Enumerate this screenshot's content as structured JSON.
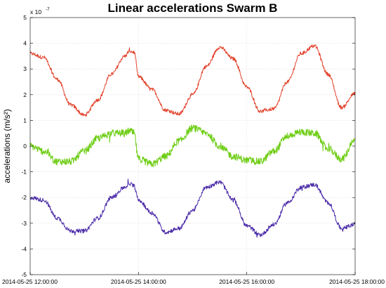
{
  "chart_data": {
    "type": "line",
    "title": "Linear accelerations Swarm B",
    "ylabel": "accelerations (m/s²)",
    "xlabel": "",
    "y_scale_factor_base": "x 10",
    "y_scale_factor_exponent": "-7",
    "ylim": [
      -5,
      5
    ],
    "yticks": [
      5,
      4,
      3,
      2,
      1,
      0,
      -1,
      -2,
      -3,
      -4,
      -5
    ],
    "ytick_labels": [
      "5",
      "4",
      "3",
      "2",
      "1",
      "0",
      "-1",
      "-2",
      "-3",
      "-4",
      "-5"
    ],
    "xlim": [
      "2014-05-25 12:00:00",
      "2014-05-25 18:00:00"
    ],
    "xtick_labels": [
      "2014-05-25 12:00:00",
      "2014-05-25 14:00:00",
      "2014-05-25 16:00:00",
      "2014-05-25 18:00:00"
    ],
    "grid": true,
    "series": [
      {
        "color": "#e2412a",
        "x": [
          "12:00",
          "12:15",
          "12:30",
          "12:45",
          "13:00",
          "13:15",
          "13:30",
          "13:45",
          "13:50",
          "13:55",
          "14:00",
          "14:15",
          "14:30",
          "14:45",
          "15:00",
          "15:15",
          "15:30",
          "15:45",
          "16:00",
          "16:15",
          "16:30",
          "16:45",
          "17:00",
          "17:15",
          "17:30",
          "17:45",
          "18:00"
        ],
        "values": [
          3.6,
          3.45,
          2.6,
          1.6,
          1.2,
          1.8,
          2.8,
          3.5,
          3.7,
          3.65,
          2.7,
          2.2,
          1.4,
          1.25,
          2.0,
          3.1,
          3.85,
          3.4,
          2.3,
          1.35,
          1.45,
          2.5,
          3.6,
          3.9,
          2.8,
          1.5,
          2.05
        ]
      },
      {
        "color": "#6ccd12",
        "x": [
          "12:00",
          "12:15",
          "12:30",
          "12:45",
          "13:00",
          "13:15",
          "13:30",
          "13:45",
          "13:50",
          "13:55",
          "14:00",
          "14:15",
          "14:30",
          "14:45",
          "15:00",
          "15:15",
          "15:30",
          "15:45",
          "16:00",
          "16:15",
          "16:30",
          "16:45",
          "17:00",
          "17:15",
          "17:30",
          "17:45",
          "18:00"
        ],
        "values": [
          0.0,
          -0.2,
          -0.6,
          -0.6,
          -0.2,
          0.3,
          0.5,
          0.5,
          0.6,
          0.5,
          -0.5,
          -0.7,
          -0.4,
          0.2,
          0.7,
          0.5,
          0.0,
          -0.4,
          -0.55,
          -0.6,
          -0.2,
          0.4,
          0.55,
          0.5,
          -0.1,
          -0.5,
          0.2
        ]
      },
      {
        "color": "#4a2aa8",
        "x": [
          "12:00",
          "12:15",
          "12:30",
          "12:45",
          "13:00",
          "13:15",
          "13:30",
          "13:45",
          "13:50",
          "13:55",
          "14:00",
          "14:15",
          "14:30",
          "14:45",
          "15:00",
          "15:15",
          "15:30",
          "15:45",
          "16:00",
          "16:15",
          "16:30",
          "16:45",
          "17:00",
          "17:15",
          "17:30",
          "17:45",
          "18:00"
        ],
        "values": [
          -2.0,
          -2.1,
          -2.8,
          -3.3,
          -3.3,
          -2.8,
          -2.0,
          -1.6,
          -1.45,
          -1.55,
          -2.1,
          -2.6,
          -3.35,
          -3.2,
          -2.5,
          -1.6,
          -1.4,
          -2.1,
          -3.1,
          -3.45,
          -3.05,
          -2.2,
          -1.6,
          -1.5,
          -2.2,
          -3.2,
          -3.05
        ]
      }
    ]
  }
}
